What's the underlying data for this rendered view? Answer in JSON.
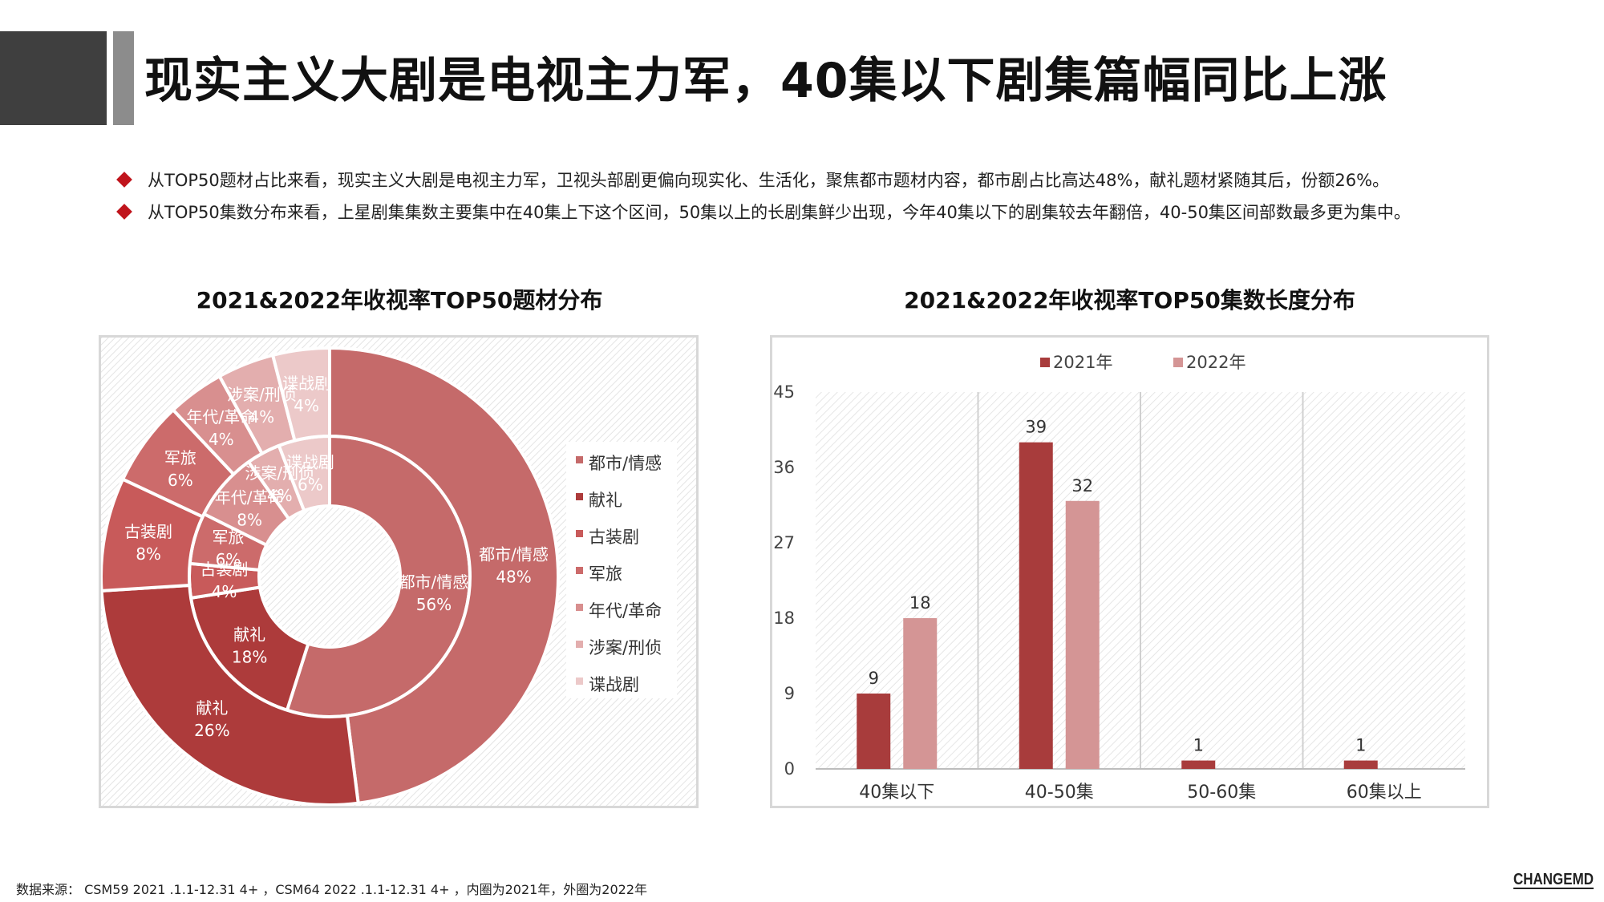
{
  "page": {
    "title": "现实主义大剧是电视主力军，40集以下剧集篇幅同比上涨",
    "bullets": [
      "从TOP50题材占比来看，现实主义大剧是电视主力军，卫视头部剧更偏向现实化、生活化，聚焦都市题材内容，都市剧占比高达48%，献礼题材紧随其后，份额26%。",
      "从TOP50集数分布来看，上星剧集集数主要集中在40集上下这个区间，50集以上的长剧集鲜少出现，今年40集以下的剧集较去年翻倍，40-50集区间部数最多更为集中。"
    ],
    "footer_note": "数据来源： CSM59  2021 .1.1-12.31 4+ ，CSM64  2022 .1.1-12.31 4+ ，内圈为2021年，外圈为2022年",
    "logo_text": "CHANGEMD",
    "bullet_color": "#c0141c"
  },
  "chart_data": [
    {
      "type": "pie",
      "subtype": "double-donut",
      "title": "2021&2022年收视率TOP50题材分布",
      "legend": [
        "都市/情感",
        "献礼",
        "古装剧",
        "军旅",
        "年代/革命",
        "涉案/刑侦",
        "谍战剧"
      ],
      "legend_position": "right",
      "colors": [
        "#c56a6a",
        "#ad3b3b",
        "#c85a5a",
        "#cc6b6b",
        "#d88f8f",
        "#e3aeae",
        "#ecc9c9"
      ],
      "series": [
        {
          "name": "2021年",
          "ring": "inner",
          "categories": [
            "都市/情感",
            "献礼",
            "古装剧",
            "军旅",
            "年代/革命",
            "涉案/刑侦",
            "谍战剧"
          ],
          "values": [
            56,
            18,
            4,
            6,
            8,
            4,
            6
          ]
        },
        {
          "name": "2022年",
          "ring": "outer",
          "categories": [
            "都市/情感",
            "献礼",
            "古装剧",
            "军旅",
            "年代/革命",
            "涉案/刑侦",
            "谍战剧"
          ],
          "values": [
            48,
            26,
            8,
            6,
            4,
            4,
            4
          ]
        }
      ]
    },
    {
      "type": "bar",
      "title": "2021&2022年收视率TOP50集数长度分布",
      "categories": [
        "40集以下",
        "40-50集",
        "50-60集",
        "60集以上"
      ],
      "series": [
        {
          "name": "2021年",
          "values": [
            9,
            39,
            1,
            1
          ],
          "color": "#a83c3c"
        },
        {
          "name": "2022年",
          "values": [
            18,
            32,
            null,
            null
          ],
          "color": "#d49595"
        }
      ],
      "ylim": [
        0,
        45
      ],
      "yticks": [
        0,
        9,
        18,
        27,
        36,
        45
      ],
      "grid": true,
      "legend_position": "top",
      "data_labels": true
    }
  ]
}
